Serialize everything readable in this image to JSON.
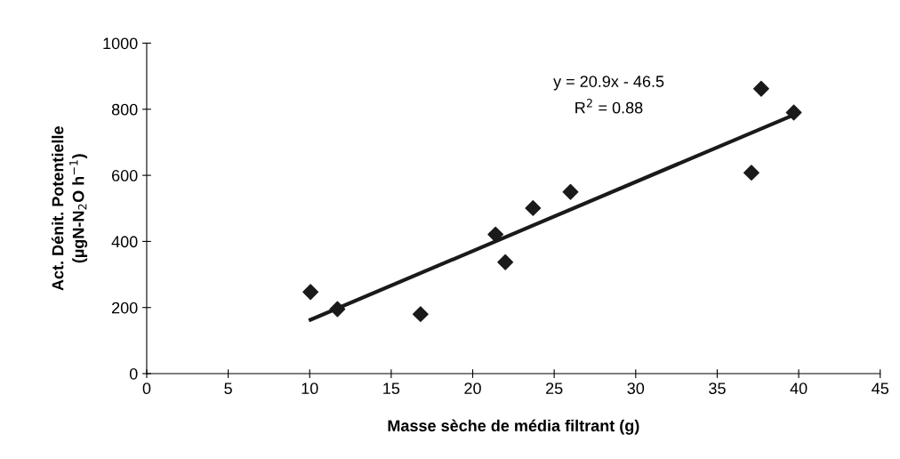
{
  "chart_data": {
    "type": "scatter",
    "xlabel": "Masse sèche de média filtrant (g)",
    "ylabel": "Act. Dénit. Potentielle\n(µgN-N$_{2}$O h$^{−1}$)",
    "xlim": [
      0,
      45
    ],
    "xticks": [
      0,
      5,
      10,
      15,
      20,
      25,
      30,
      35,
      40,
      45
    ],
    "ylim": [
      0,
      1000
    ],
    "yticks": [
      0,
      200,
      400,
      600,
      800,
      1000
    ],
    "grid": false,
    "legend": false,
    "marker": "diamond",
    "series": [
      {
        "color": "#1a1a1a",
        "x": [
          10.05,
          11.7,
          16.8,
          21.4,
          22.0,
          23.7,
          26.0,
          37.1,
          37.7,
          39.7
        ],
        "values": [
          247,
          195,
          180,
          421,
          337,
          501,
          550,
          608,
          862,
          790
        ]
      },
      {
        "type": "line",
        "color": "#1a1a1a",
        "line_style": "solid",
        "marker": "none",
        "x": [
          10.05,
          39.7
        ],
        "values": [
          163,
          783
        ]
      }
    ],
    "annotations": [
      "y = 20.9x - 46.5",
      "R$^{2}$ = 0.88"
    ]
  }
}
